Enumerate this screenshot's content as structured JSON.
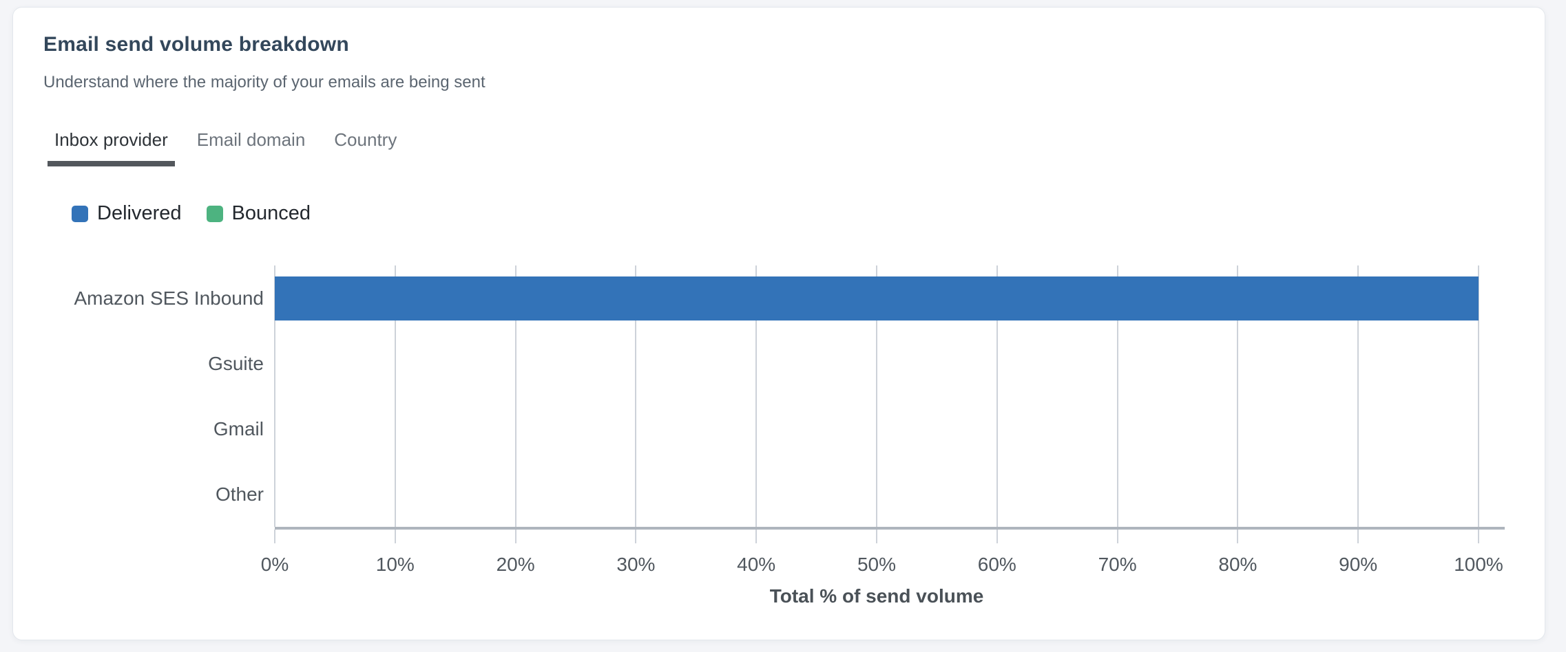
{
  "card": {
    "title": "Email send volume breakdown",
    "subtitle": "Understand where the majority of your emails are being sent"
  },
  "tabs": [
    {
      "label": "Inbox provider",
      "active": true
    },
    {
      "label": "Email domain",
      "active": false
    },
    {
      "label": "Country",
      "active": false
    }
  ],
  "chart_data": {
    "type": "bar",
    "orientation": "horizontal",
    "stacked": true,
    "title": "Email send volume breakdown",
    "categories": [
      "Amazon SES Inbound",
      "Gsuite",
      "Gmail",
      "Other"
    ],
    "series": [
      {
        "name": "Delivered",
        "color": "#3373b8",
        "values": [
          100,
          0,
          0,
          0
        ]
      },
      {
        "name": "Bounced",
        "color": "#4db380",
        "values": [
          0,
          0,
          0,
          0
        ]
      }
    ],
    "xlabel": "Total % of send volume",
    "ylabel": "",
    "xlim": [
      0,
      100
    ],
    "xtick_step": 10,
    "xtick_suffix": "%",
    "grid": true,
    "legend_position": "top-left"
  },
  "colors": {
    "delivered": "#3373b8",
    "bounced": "#4db380",
    "active_tab_underline": "#53575c",
    "card_background": "#ffffff",
    "page_background": "#f4f5f8"
  }
}
